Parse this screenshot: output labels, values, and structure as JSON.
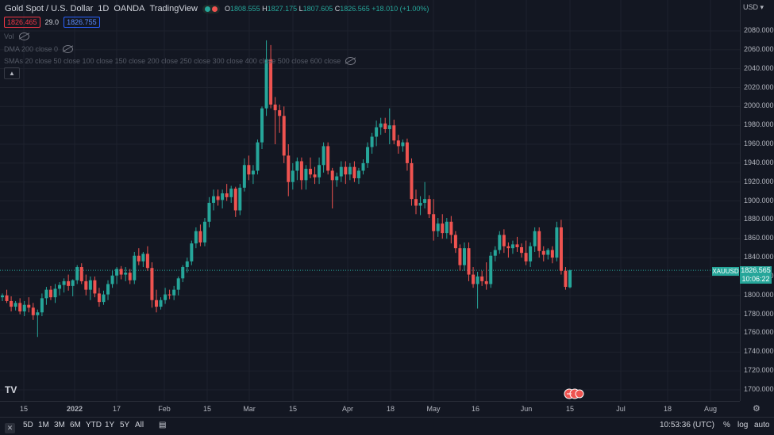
{
  "header": {
    "symbol": "Gold Spot / U.S. Dollar",
    "interval": "1D",
    "broker": "OANDA",
    "platform": "TradingView",
    "open_label": "O",
    "open": "1808.555",
    "high_label": "H",
    "high": "1827.175",
    "low_label": "L",
    "low": "1807.605",
    "close_label": "C",
    "close": "1826.565",
    "change": "+18.010 (+1.00%)",
    "sell_price": "1826.465",
    "spread": "29.0",
    "buy_price": "1826.755"
  },
  "indicators": {
    "vol": "Vol",
    "dma": "DMA 200 close 0",
    "smas": "SMAs 20 close 50 close 100 close 150 close 200 close 250 close 300 close 400 close 500 close 600 close"
  },
  "price_scale": {
    "currency": "USD",
    "ticks": [
      "2080.000",
      "2060.000",
      "2040.000",
      "2020.000",
      "2000.000",
      "1980.000",
      "1960.000",
      "1940.000",
      "1920.000",
      "1900.000",
      "1880.000",
      "1860.000",
      "1840.000",
      "1820.000",
      "1800.000",
      "1780.000",
      "1760.000",
      "1740.000",
      "1720.000",
      "1700.000"
    ]
  },
  "current_tag": {
    "symbol": "XAUUSD",
    "price": "1826.565",
    "countdown": "10:06:22"
  },
  "time_scale": {
    "ticks": [
      "15",
      "2022",
      "17",
      "Feb",
      "15",
      "Mar",
      "15",
      "Apr",
      "18",
      "May",
      "16",
      "Jun",
      "15",
      "Jul",
      "18",
      "Aug"
    ]
  },
  "bottom_bar": {
    "ranges": [
      "5D",
      "1M",
      "3M",
      "6M",
      "YTD",
      "1Y",
      "5Y",
      "All"
    ],
    "time": "10:53:36 (UTC)",
    "percent": "%",
    "log": "log",
    "auto": "auto"
  },
  "colors": {
    "up": "#26a69a",
    "down": "#ef5350",
    "bg": "#131722",
    "grid": "#1e222d"
  },
  "chart_data": {
    "type": "candlestick",
    "candles": [
      [
        1798,
        1802,
        1794,
        1800
      ],
      [
        1800,
        1806,
        1792,
        1794
      ],
      [
        1794,
        1799,
        1783,
        1788
      ],
      [
        1788,
        1794,
        1784,
        1792
      ],
      [
        1792,
        1797,
        1780,
        1783
      ],
      [
        1783,
        1794,
        1778,
        1790
      ],
      [
        1790,
        1798,
        1782,
        1787
      ],
      [
        1787,
        1792,
        1774,
        1779
      ],
      [
        1779,
        1785,
        1756,
        1782
      ],
      [
        1782,
        1802,
        1778,
        1797
      ],
      [
        1797,
        1809,
        1790,
        1806
      ],
      [
        1806,
        1810,
        1795,
        1798
      ],
      [
        1798,
        1812,
        1792,
        1807
      ],
      [
        1807,
        1814,
        1800,
        1811
      ],
      [
        1811,
        1818,
        1803,
        1815
      ],
      [
        1815,
        1822,
        1805,
        1810
      ],
      [
        1810,
        1817,
        1799,
        1816
      ],
      [
        1816,
        1832,
        1812,
        1830
      ],
      [
        1830,
        1834,
        1812,
        1815
      ],
      [
        1815,
        1822,
        1800,
        1806
      ],
      [
        1806,
        1820,
        1795,
        1816
      ],
      [
        1816,
        1820,
        1798,
        1802
      ],
      [
        1802,
        1808,
        1788,
        1793
      ],
      [
        1793,
        1805,
        1790,
        1801
      ],
      [
        1801,
        1816,
        1795,
        1812
      ],
      [
        1812,
        1826,
        1808,
        1821
      ],
      [
        1821,
        1830,
        1812,
        1828
      ],
      [
        1828,
        1831,
        1817,
        1822
      ],
      [
        1822,
        1830,
        1815,
        1824
      ],
      [
        1824,
        1828,
        1812,
        1816
      ],
      [
        1816,
        1846,
        1812,
        1842
      ],
      [
        1842,
        1850,
        1832,
        1836
      ],
      [
        1836,
        1846,
        1830,
        1844
      ],
      [
        1844,
        1852,
        1826,
        1829
      ],
      [
        1829,
        1835,
        1787,
        1795
      ],
      [
        1795,
        1806,
        1782,
        1788
      ],
      [
        1788,
        1798,
        1785,
        1795
      ],
      [
        1795,
        1808,
        1791,
        1801
      ],
      [
        1801,
        1806,
        1796,
        1800
      ],
      [
        1800,
        1810,
        1795,
        1806
      ],
      [
        1806,
        1820,
        1800,
        1818
      ],
      [
        1818,
        1832,
        1814,
        1830
      ],
      [
        1830,
        1840,
        1824,
        1836
      ],
      [
        1836,
        1858,
        1832,
        1855
      ],
      [
        1855,
        1872,
        1850,
        1868
      ],
      [
        1868,
        1875,
        1852,
        1856
      ],
      [
        1856,
        1882,
        1852,
        1878
      ],
      [
        1878,
        1904,
        1872,
        1898
      ],
      [
        1898,
        1912,
        1890,
        1905
      ],
      [
        1905,
        1912,
        1895,
        1901
      ],
      [
        1901,
        1912,
        1892,
        1908
      ],
      [
        1908,
        1918,
        1900,
        1904
      ],
      [
        1904,
        1916,
        1898,
        1913
      ],
      [
        1913,
        1915,
        1883,
        1890
      ],
      [
        1890,
        1918,
        1885,
        1914
      ],
      [
        1914,
        1945,
        1910,
        1938
      ],
      [
        1938,
        1948,
        1922,
        1928
      ],
      [
        1928,
        1938,
        1918,
        1932
      ],
      [
        1932,
        1965,
        1928,
        1962
      ],
      [
        1962,
        2000,
        1955,
        1998
      ],
      [
        1998,
        2070,
        1990,
        2050
      ],
      [
        2050,
        2065,
        1998,
        2002
      ],
      [
        2002,
        2010,
        1960,
        1996
      ],
      [
        1996,
        2002,
        1972,
        1990
      ],
      [
        1990,
        2000,
        1940,
        1948
      ],
      [
        1948,
        1960,
        1905,
        1920
      ],
      [
        1920,
        1940,
        1912,
        1932
      ],
      [
        1932,
        1946,
        1922,
        1942
      ],
      [
        1942,
        1946,
        1912,
        1922
      ],
      [
        1922,
        1938,
        1912,
        1934
      ],
      [
        1934,
        1946,
        1924,
        1928
      ],
      [
        1928,
        1936,
        1918,
        1925
      ],
      [
        1925,
        1946,
        1918,
        1938
      ],
      [
        1938,
        1962,
        1930,
        1958
      ],
      [
        1958,
        1962,
        1928,
        1932
      ],
      [
        1932,
        1935,
        1892,
        1922
      ],
      [
        1922,
        1930,
        1915,
        1926
      ],
      [
        1926,
        1942,
        1920,
        1936
      ],
      [
        1936,
        1942,
        1918,
        1928
      ],
      [
        1928,
        1940,
        1922,
        1936
      ],
      [
        1936,
        1942,
        1920,
        1924
      ],
      [
        1924,
        1935,
        1918,
        1932
      ],
      [
        1932,
        1944,
        1928,
        1940
      ],
      [
        1940,
        1962,
        1935,
        1957
      ],
      [
        1957,
        1972,
        1950,
        1968
      ],
      [
        1968,
        1985,
        1958,
        1978
      ],
      [
        1978,
        1988,
        1970,
        1982
      ],
      [
        1982,
        1988,
        1972,
        1976
      ],
      [
        1976,
        1998,
        1960,
        1980
      ],
      [
        1980,
        1986,
        1960,
        1964
      ],
      [
        1964,
        1970,
        1950,
        1958
      ],
      [
        1958,
        1965,
        1952,
        1962
      ],
      [
        1962,
        1966,
        1932,
        1940
      ],
      [
        1940,
        1945,
        1895,
        1902
      ],
      [
        1902,
        1912,
        1886,
        1895
      ],
      [
        1895,
        1905,
        1885,
        1898
      ],
      [
        1898,
        1920,
        1892,
        1902
      ],
      [
        1902,
        1906,
        1882,
        1886
      ],
      [
        1886,
        1902,
        1858,
        1868
      ],
      [
        1868,
        1882,
        1862,
        1876
      ],
      [
        1876,
        1886,
        1860,
        1866
      ],
      [
        1866,
        1882,
        1860,
        1878
      ],
      [
        1878,
        1884,
        1855,
        1864
      ],
      [
        1864,
        1868,
        1845,
        1850
      ],
      [
        1850,
        1854,
        1826,
        1832
      ],
      [
        1832,
        1856,
        1826,
        1850
      ],
      [
        1850,
        1856,
        1815,
        1822
      ],
      [
        1822,
        1830,
        1808,
        1812
      ],
      [
        1812,
        1825,
        1786,
        1820
      ],
      [
        1820,
        1826,
        1810,
        1815
      ],
      [
        1815,
        1835,
        1806,
        1812
      ],
      [
        1812,
        1846,
        1808,
        1842
      ],
      [
        1842,
        1852,
        1836,
        1848
      ],
      [
        1848,
        1868,
        1844,
        1864
      ],
      [
        1864,
        1870,
        1845,
        1852
      ],
      [
        1852,
        1856,
        1840,
        1850
      ],
      [
        1850,
        1858,
        1844,
        1854
      ],
      [
        1854,
        1862,
        1846,
        1851
      ],
      [
        1851,
        1855,
        1840,
        1845
      ],
      [
        1845,
        1858,
        1832,
        1836
      ],
      [
        1836,
        1856,
        1830,
        1852
      ],
      [
        1852,
        1872,
        1846,
        1868
      ],
      [
        1868,
        1872,
        1840,
        1847
      ],
      [
        1847,
        1852,
        1836,
        1843
      ],
      [
        1843,
        1850,
        1838,
        1848
      ],
      [
        1848,
        1852,
        1834,
        1840
      ],
      [
        1840,
        1878,
        1836,
        1872
      ],
      [
        1872,
        1880,
        1822,
        1826
      ],
      [
        1826,
        1830,
        1806,
        1809
      ],
      [
        1808.555,
        1827.175,
        1807.605,
        1826.565
      ]
    ]
  }
}
